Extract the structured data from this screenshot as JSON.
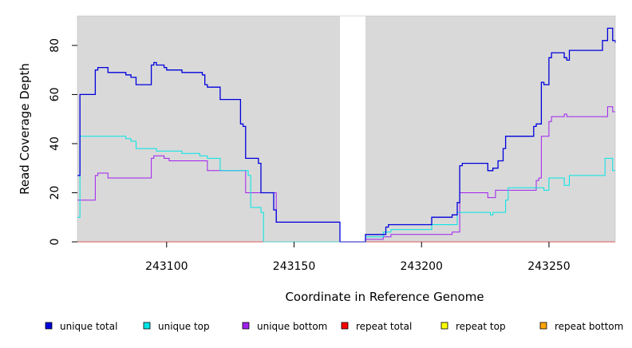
{
  "chart_data": {
    "type": "line",
    "title": "",
    "xlabel": "Coordinate in Reference Genome",
    "ylabel": "Read Coverage Depth",
    "xlim": [
      243065,
      243276
    ],
    "ylim": [
      0,
      92
    ],
    "x_ticks": [
      243100,
      243150,
      243200,
      243250
    ],
    "y_ticks": [
      0,
      20,
      40,
      60,
      80
    ],
    "background": "#d9d9d9",
    "gap": [
      243168,
      243178
    ],
    "legend_position": "bottom",
    "series": [
      {
        "name": "unique total",
        "color": "#0000dd",
        "step": [
          [
            243065,
            27
          ],
          [
            243066,
            60
          ],
          [
            243072,
            70
          ],
          [
            243073,
            71
          ],
          [
            243077,
            69
          ],
          [
            243084,
            68
          ],
          [
            243086,
            67
          ],
          [
            243088,
            64
          ],
          [
            243094,
            72
          ],
          [
            243095,
            73
          ],
          [
            243096,
            72
          ],
          [
            243099,
            71
          ],
          [
            243100,
            70
          ],
          [
            243106,
            69
          ],
          [
            243114,
            68
          ],
          [
            243115,
            64
          ],
          [
            243116,
            63
          ],
          [
            243121,
            58
          ],
          [
            243129,
            48
          ],
          [
            243130,
            47
          ],
          [
            243131,
            34
          ],
          [
            243136,
            32
          ],
          [
            243137,
            20
          ],
          [
            243142,
            13
          ],
          [
            243143,
            8
          ],
          [
            243168,
            0
          ],
          [
            243178,
            3
          ],
          [
            243186,
            6
          ],
          [
            243187,
            7
          ],
          [
            243204,
            10
          ],
          [
            243212,
            11
          ],
          [
            243214,
            16
          ],
          [
            243215,
            31
          ],
          [
            243216,
            32
          ],
          [
            243226,
            29
          ],
          [
            243228,
            30
          ],
          [
            243230,
            33
          ],
          [
            243232,
            38
          ],
          [
            243233,
            43
          ],
          [
            243244,
            47
          ],
          [
            243245,
            48
          ],
          [
            243247,
            65
          ],
          [
            243248,
            64
          ],
          [
            243250,
            75
          ],
          [
            243251,
            77
          ],
          [
            243256,
            75
          ],
          [
            243257,
            74
          ],
          [
            243258,
            78
          ],
          [
            243271,
            82
          ],
          [
            243273,
            87
          ],
          [
            243275,
            82
          ],
          [
            243276,
            81
          ]
        ]
      },
      {
        "name": "unique top",
        "color": "#00e5e5",
        "step": [
          [
            243065,
            10
          ],
          [
            243066,
            43
          ],
          [
            243084,
            42
          ],
          [
            243086,
            41
          ],
          [
            243088,
            38
          ],
          [
            243096,
            37
          ],
          [
            243106,
            36
          ],
          [
            243113,
            35
          ],
          [
            243116,
            34
          ],
          [
            243121,
            29
          ],
          [
            243132,
            27
          ],
          [
            243133,
            14
          ],
          [
            243137,
            12
          ],
          [
            243138,
            0
          ],
          [
            243168,
            0
          ],
          [
            243178,
            2
          ],
          [
            243185,
            4
          ],
          [
            243188,
            5
          ],
          [
            243204,
            7
          ],
          [
            243214,
            12
          ],
          [
            243227,
            11
          ],
          [
            243228,
            12
          ],
          [
            243233,
            17
          ],
          [
            243234,
            22
          ],
          [
            243248,
            21
          ],
          [
            243250,
            26
          ],
          [
            243256,
            23
          ],
          [
            243258,
            27
          ],
          [
            243272,
            34
          ],
          [
            243275,
            29
          ]
        ]
      },
      {
        "name": "unique bottom",
        "color": "#a020f0",
        "step": [
          [
            243065,
            17
          ],
          [
            243072,
            27
          ],
          [
            243073,
            28
          ],
          [
            243077,
            26
          ],
          [
            243094,
            34
          ],
          [
            243095,
            35
          ],
          [
            243099,
            34
          ],
          [
            243101,
            33
          ],
          [
            243116,
            29
          ],
          [
            243131,
            20
          ],
          [
            243143,
            8
          ],
          [
            243168,
            0
          ],
          [
            243178,
            1
          ],
          [
            243185,
            2
          ],
          [
            243188,
            3
          ],
          [
            243212,
            4
          ],
          [
            243215,
            20
          ],
          [
            243226,
            18
          ],
          [
            243229,
            21
          ],
          [
            243245,
            25
          ],
          [
            243246,
            26
          ],
          [
            243247,
            43
          ],
          [
            243250,
            49
          ],
          [
            243251,
            51
          ],
          [
            243256,
            52
          ],
          [
            243257,
            51
          ],
          [
            243273,
            55
          ],
          [
            243275,
            53
          ]
        ]
      },
      {
        "name": "repeat total",
        "color": "#ff0000",
        "step": [
          [
            243065,
            0
          ],
          [
            243276,
            0
          ]
        ]
      },
      {
        "name": "repeat top",
        "color": "#ffff00",
        "step": [
          [
            243065,
            0
          ],
          [
            243276,
            0
          ]
        ]
      },
      {
        "name": "repeat bottom",
        "color": "#ffa500",
        "step": [
          [
            243065,
            0
          ],
          [
            243276,
            0
          ]
        ]
      }
    ]
  }
}
